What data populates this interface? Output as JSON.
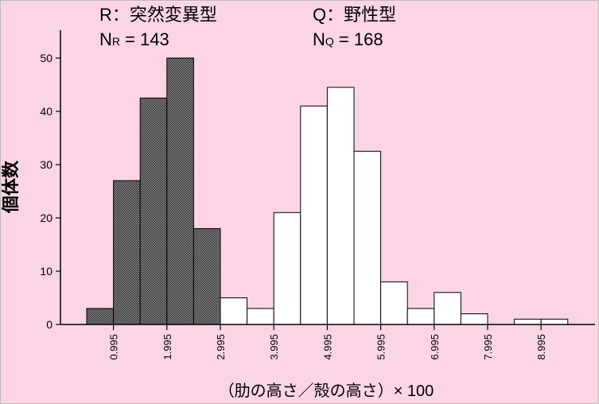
{
  "legend": {
    "mutant_label": "R：突然変異型",
    "mutant_n_letter": "N",
    "mutant_n_sub": "R",
    "mutant_n_value": " = 143",
    "wild_label": "Q：野性型",
    "wild_n_letter": "N",
    "wild_n_sub": "Q",
    "wild_n_value": " = 168"
  },
  "chart_data": {
    "type": "bar",
    "xlabel": "（肋の高さ／殻の高さ）× 100",
    "ylabel": "個体数",
    "ylim": [
      0,
      55
    ],
    "yticks": [
      0,
      10,
      20,
      30,
      40,
      50
    ],
    "xlim": [
      -0.5,
      9.5
    ],
    "xticks": [
      0.995,
      1.995,
      2.995,
      3.995,
      4.995,
      5.995,
      6.995,
      7.995,
      8.995
    ],
    "bin_width": 0.5,
    "grid": false,
    "series": [
      {
        "name": "R：突然変異型",
        "fill": "hatched",
        "color": "#555555",
        "bins": [
          {
            "start": 0.0,
            "value": 3
          },
          {
            "start": 0.5,
            "value": 27
          },
          {
            "start": 1.0,
            "value": 42.5
          },
          {
            "start": 1.5,
            "value": 50
          },
          {
            "start": 2.0,
            "value": 18
          },
          {
            "start": 2.5,
            "value": 2
          }
        ]
      },
      {
        "name": "Q：野性型",
        "fill": "white",
        "color": "#ffffff",
        "bins": [
          {
            "start": 2.5,
            "value": 5
          },
          {
            "start": 3.0,
            "value": 3
          },
          {
            "start": 3.5,
            "value": 21
          },
          {
            "start": 4.0,
            "value": 41
          },
          {
            "start": 4.5,
            "value": 44.5
          },
          {
            "start": 5.0,
            "value": 32.5
          },
          {
            "start": 5.5,
            "value": 8
          },
          {
            "start": 6.0,
            "value": 3
          },
          {
            "start": 6.5,
            "value": 6
          },
          {
            "start": 7.0,
            "value": 2
          },
          {
            "start": 8.0,
            "value": 1
          },
          {
            "start": 8.5,
            "value": 1
          }
        ]
      }
    ]
  }
}
